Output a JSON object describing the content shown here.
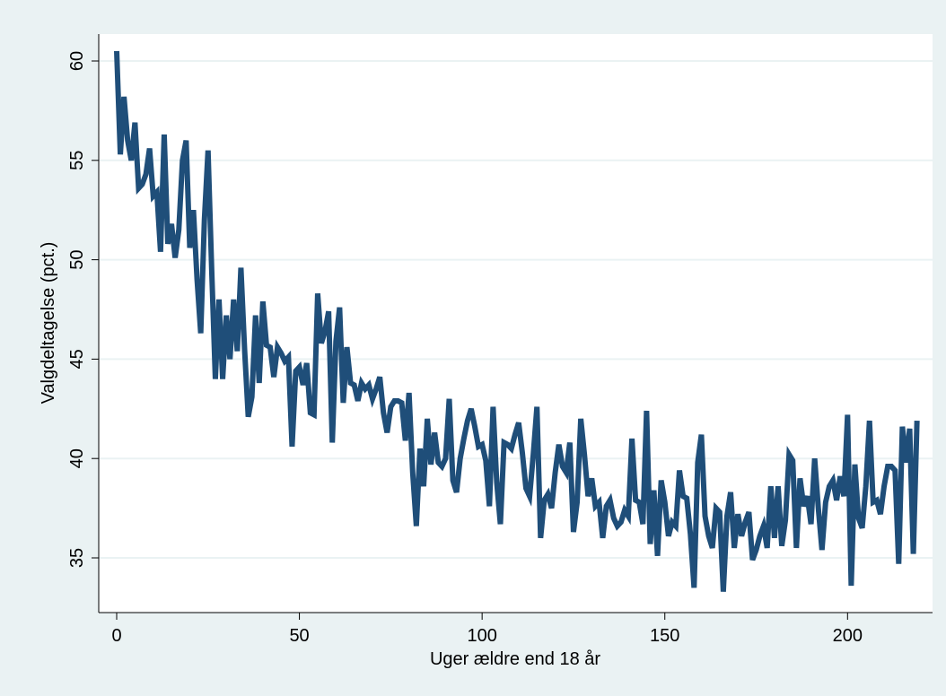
{
  "chart_data": {
    "type": "line",
    "title": "",
    "xlabel": "Uger ældre end 18 år",
    "ylabel": "Valgdeltagelse (pct.)",
    "xlim": [
      0,
      221
    ],
    "ylim": [
      33,
      61.5
    ],
    "x_ticks": [
      0,
      50,
      100,
      150,
      200
    ],
    "y_ticks": [
      35,
      40,
      45,
      50,
      55,
      60
    ],
    "grid": "horizontal",
    "colors": {
      "page_background": "#eaf2f3",
      "plot_background": "#ffffff",
      "grid": "#eaf2f3",
      "line": "#1f4e79"
    },
    "series": [
      {
        "x": [
          0,
          1,
          2,
          3,
          4,
          5,
          6,
          7,
          8,
          9,
          10,
          11,
          12,
          13,
          14,
          15,
          16,
          17,
          18,
          19,
          20,
          21,
          22,
          23,
          24,
          25,
          26,
          27,
          28,
          29,
          30,
          31,
          32,
          33,
          34,
          35,
          36,
          37,
          38,
          39,
          40,
          41,
          42,
          43,
          44,
          45,
          46,
          47,
          48,
          49,
          50,
          51,
          52,
          53,
          54,
          55,
          56,
          57,
          58,
          59,
          60,
          61,
          62,
          63,
          64,
          65,
          66,
          67,
          68,
          69,
          70,
          71,
          72,
          73,
          74,
          75,
          76,
          77,
          78,
          79,
          80,
          81,
          82,
          83,
          84,
          85,
          86,
          87,
          88,
          89,
          90,
          91,
          92,
          93,
          94,
          95,
          96,
          97,
          98,
          99,
          100,
          101,
          102,
          103,
          104,
          105,
          106,
          107,
          108,
          109,
          110,
          111,
          112,
          113,
          114,
          115,
          116,
          117,
          118,
          119,
          120,
          121,
          122,
          123,
          124,
          125,
          126,
          127,
          128,
          129,
          130,
          131,
          132,
          133,
          134,
          135,
          136,
          137,
          138,
          139,
          140,
          141,
          142,
          143,
          144,
          145,
          146,
          147,
          148,
          149,
          150,
          151,
          152,
          153,
          154,
          155,
          156,
          157,
          158,
          159,
          160,
          161,
          162,
          163,
          164,
          165,
          166,
          167,
          168,
          169,
          170,
          171,
          172,
          173,
          174,
          175,
          176,
          177,
          178,
          179,
          180,
          181,
          182,
          183,
          184,
          185,
          186,
          187,
          188,
          189,
          190,
          191,
          192,
          193,
          194,
          195,
          196,
          197,
          198,
          199,
          200,
          201,
          202,
          203,
          204,
          205,
          206,
          207,
          208,
          209,
          210,
          211,
          212,
          213,
          214,
          215,
          216,
          217,
          218,
          219
        ],
        "y": [
          60.5,
          55.3,
          58.2,
          56.0,
          55.0,
          56.9,
          53.6,
          53.8,
          54.3,
          55.6,
          53.2,
          53.4,
          50.4,
          56.3,
          50.8,
          51.8,
          50.1,
          51.5,
          55.0,
          56.0,
          50.6,
          52.5,
          49.0,
          46.3,
          52.0,
          55.5,
          49.5,
          44.0,
          48.0,
          44.0,
          47.2,
          45.0,
          48.0,
          45.4,
          49.6,
          45.5,
          42.1,
          43.1,
          47.2,
          43.8,
          47.9,
          45.7,
          45.6,
          44.1,
          45.6,
          45.3,
          44.9,
          45.1,
          40.6,
          44.4,
          44.6,
          43.7,
          44.8,
          42.3,
          42.2,
          48.3,
          45.8,
          46.4,
          47.4,
          40.8,
          45.9,
          47.6,
          42.8,
          45.6,
          43.8,
          43.7,
          42.9,
          43.8,
          43.5,
          43.7,
          43.0,
          43.5,
          44.1,
          42.3,
          41.3,
          42.6,
          42.9,
          42.9,
          42.8,
          40.9,
          43.3,
          39.3,
          36.6,
          40.5,
          38.6,
          42.0,
          39.7,
          41.3,
          39.8,
          39.6,
          40.0,
          43.0,
          38.9,
          38.3,
          40.0,
          41.0,
          41.9,
          42.5,
          41.6,
          40.6,
          40.7,
          39.9,
          37.6,
          42.6,
          38.8,
          36.7,
          40.8,
          40.7,
          40.5,
          41.2,
          41.8,
          40.3,
          38.5,
          38.1,
          40.2,
          42.6,
          36.0,
          37.9,
          38.2,
          37.5,
          39.3,
          40.7,
          39.6,
          39.3,
          40.8,
          36.3,
          37.8,
          42.0,
          40.2,
          38.1,
          39.0,
          37.6,
          37.8,
          36.0,
          37.6,
          37.9,
          37.0,
          36.6,
          36.8,
          37.4,
          37.1,
          41.0,
          37.9,
          37.8,
          36.7,
          42.4,
          35.7,
          38.4,
          35.1,
          38.9,
          37.8,
          36.1,
          36.8,
          36.6,
          39.4,
          38.1,
          38.0,
          36.2,
          33.5,
          39.8,
          41.2,
          37.1,
          36.1,
          35.5,
          37.5,
          37.3,
          33.3,
          37.1,
          38.3,
          35.5,
          37.2,
          36.1,
          36.8,
          37.3,
          34.9,
          35.4,
          36.1,
          36.6,
          35.5,
          38.6,
          36.0,
          38.6,
          35.6,
          36.9,
          40.2,
          39.9,
          35.5,
          39.0,
          37.6,
          38.1,
          36.7,
          40.0,
          37.5,
          35.4,
          37.8,
          38.6,
          38.9,
          37.9,
          39.1,
          38.1,
          42.2,
          33.6,
          39.7,
          37.0,
          36.5,
          38.6,
          41.9,
          37.8,
          37.9,
          37.2,
          38.6,
          39.6,
          39.6,
          39.4,
          34.7,
          41.6,
          39.8,
          41.5,
          35.2,
          41.9
        ]
      }
    ]
  }
}
